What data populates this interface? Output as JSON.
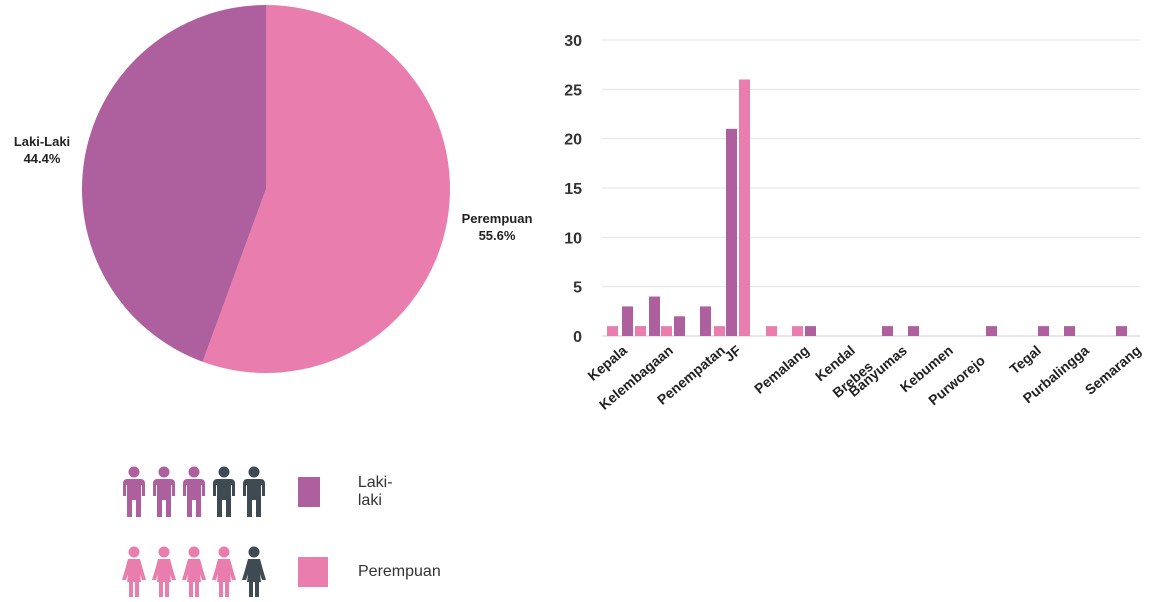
{
  "colors": {
    "laki": "#AE5F9E",
    "perempuan": "#E97DAE",
    "dark_person": "#3E4B53",
    "grid": "#E3E3E3"
  },
  "chart_data": [
    {
      "type": "pie",
      "labels": [
        "Laki-Laki",
        "Perempuan"
      ],
      "values": [
        44.4,
        55.6
      ],
      "value_labels": [
        "44.4%",
        "55.6%"
      ],
      "colors": [
        "#AE5F9E",
        "#E97DAE"
      ]
    },
    {
      "type": "bar",
      "categories": [
        "Kepala",
        "Kelembagaan",
        "Penempatan",
        "JF",
        "Pemalang",
        "Kendal",
        "Brebes",
        "Banyumas",
        "Kebumen",
        "Purworejo",
        "Tegal",
        "Purbalingga",
        "Semarang"
      ],
      "series": [
        {
          "values": [
            3,
            4,
            3,
            21,
            1,
            0,
            0,
            1,
            1,
            1,
            1,
            1,
            1
          ],
          "color": "#AE5F9E"
        },
        {
          "values": [
            1,
            1,
            1,
            26,
            1,
            1,
            0,
            0,
            0,
            0,
            0,
            0,
            0
          ],
          "color": "#E97DAE"
        }
      ],
      "extra_bars": [
        {
          "after_category": "Kepala",
          "value": 1,
          "color": "#E97DAE",
          "label": ""
        },
        {
          "after_category": "Kelembagaan",
          "value": 2,
          "color": "#AE5F9E",
          "label": ""
        }
      ],
      "ylim": [
        0,
        30
      ],
      "yticks": [
        0,
        5,
        10,
        15,
        20,
        25,
        30
      ],
      "grid": true
    }
  ],
  "legend": [
    {
      "label": "Laki-laki",
      "icon": "person-male-icon",
      "count_colored": 3,
      "count_dark": 2
    },
    {
      "label": "Perempuan",
      "icon": "person-female-icon",
      "count_colored": 4,
      "count_dark": 1
    }
  ]
}
